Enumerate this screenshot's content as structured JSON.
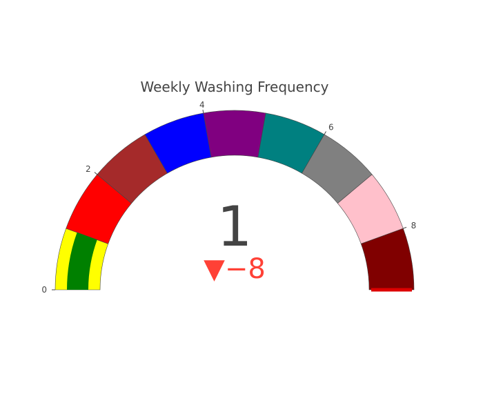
{
  "chart_data": {
    "type": "gauge",
    "title": "Weekly Washing Frequency",
    "value": 1,
    "reference": 9,
    "delta": -8,
    "delta_text": "▼−8",
    "range": [
      0,
      9
    ],
    "tick_values": [
      0,
      2,
      4,
      6,
      8
    ],
    "tick_labels": [
      "0",
      "2",
      "4",
      "6",
      "8"
    ],
    "steps": [
      {
        "range": [
          0,
          1
        ],
        "color": "#ffff00"
      },
      {
        "range": [
          1,
          2
        ],
        "color": "#ff0000"
      },
      {
        "range": [
          2,
          3
        ],
        "color": "#a52a2a"
      },
      {
        "range": [
          3,
          4
        ],
        "color": "#0000ff"
      },
      {
        "range": [
          4,
          5
        ],
        "color": "#800080"
      },
      {
        "range": [
          5,
          6
        ],
        "color": "#008080"
      },
      {
        "range": [
          6,
          7
        ],
        "color": "#808080"
      },
      {
        "range": [
          7,
          8
        ],
        "color": "#ffc0cb"
      },
      {
        "range": [
          8,
          9
        ],
        "color": "#800000"
      }
    ],
    "bar_color": "#008000",
    "threshold": {
      "value": 9,
      "color": "#dd0000"
    },
    "delta_color": "#ff4136"
  }
}
